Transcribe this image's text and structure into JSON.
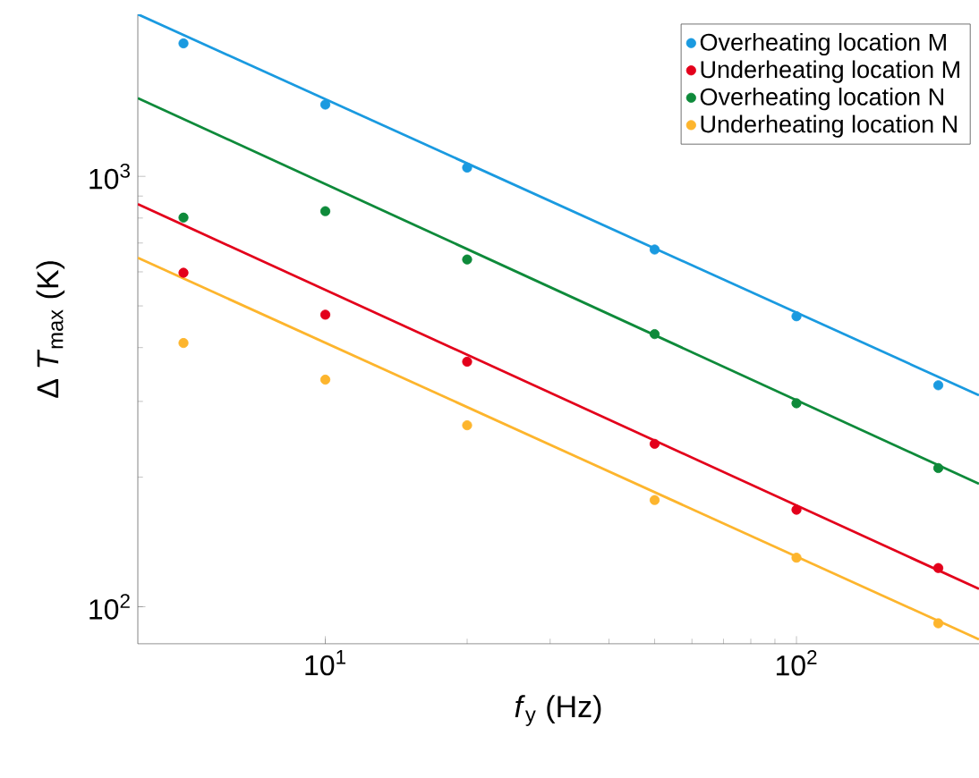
{
  "chart_data": {
    "type": "scatter",
    "xlabel": "*f*$_{y}$ (Hz)",
    "ylabel": "Δ *T*$_{max}$ (K)",
    "log": "xy",
    "xlim": [
      4,
      244
    ],
    "ylim": [
      82,
      2380
    ],
    "xticks": [
      {
        "value": 10,
        "label": "10$^{1}$"
      },
      {
        "value": 100,
        "label": "10$^{2}$"
      }
    ],
    "yticks": [
      {
        "value": 100,
        "label": "10$^{2}$"
      },
      {
        "value": 1000,
        "label": "10$^{3}$"
      }
    ],
    "legend": "top right",
    "marker": "circle",
    "grid": false,
    "series": [
      {
        "name": "Overheating location M",
        "color": "#1a9ae0",
        "x": [
          5,
          10,
          20,
          50,
          100,
          200
        ],
        "values": [
          2037,
          1468,
          1048,
          676,
          473,
          327
        ]
      },
      {
        "name": "Underheating location M",
        "color": "#e3001b",
        "x": [
          5,
          10,
          20,
          50,
          100,
          200
        ],
        "values": [
          597,
          477,
          371,
          239,
          168,
          123
        ]
      },
      {
        "name": "Overheating location N",
        "color": "#0e8a3a",
        "x": [
          5,
          10,
          20,
          50,
          100,
          200
        ],
        "values": [
          802,
          830,
          641,
          430,
          297,
          210
        ]
      },
      {
        "name": "Underheating location N",
        "color": "#fdb52d",
        "x": [
          5,
          10,
          20,
          50,
          100,
          200
        ],
        "values": [
          410,
          337,
          264,
          177,
          130,
          91.5
        ]
      },
      {
        "type": "line",
        "marker": "none",
        "color": "#1a9ae0",
        "x": [
          4,
          244
        ],
        "values": [
          2380,
          310
        ]
      },
      {
        "type": "line",
        "marker": "none",
        "color": "#e3001b",
        "x": [
          4,
          244
        ],
        "values": [
          862,
          110
        ]
      },
      {
        "type": "line",
        "marker": "none",
        "color": "#0e8a3a",
        "x": [
          4,
          244
        ],
        "values": [
          1520,
          193
        ]
      },
      {
        "type": "line",
        "marker": "none",
        "color": "#fdb52d",
        "x": [
          4,
          244
        ],
        "values": [
          647,
          84
        ]
      }
    ]
  }
}
